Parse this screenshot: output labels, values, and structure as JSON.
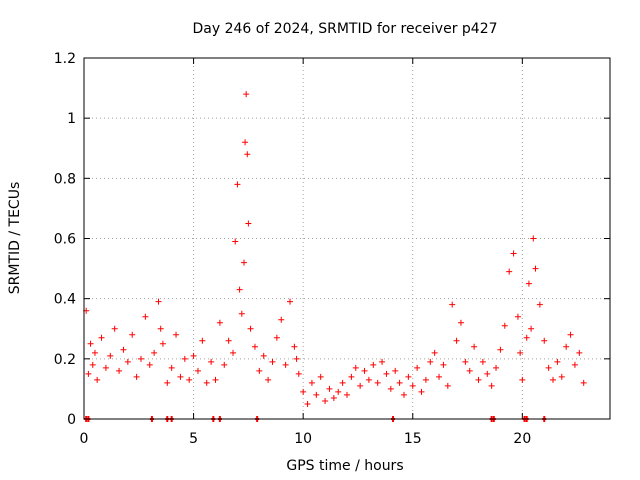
{
  "colors": {
    "series": "#ff0000",
    "background": "#ffffff",
    "grid": "#a0a0a0"
  },
  "chart_data": {
    "type": "scatter",
    "title": "Day 246 of 2024, SRMTID for receiver p427",
    "xlabel": "GPS time / hours",
    "ylabel": "SRMTID / TECUs",
    "xlim": [
      0,
      24
    ],
    "ylim": [
      0,
      1.2
    ],
    "xticks": [
      0,
      5,
      10,
      15,
      20
    ],
    "xtick_labels": [
      "0",
      "5",
      "10",
      "15",
      "20"
    ],
    "yticks": [
      0,
      0.2,
      0.4,
      0.6,
      0.8,
      1.0,
      1.2
    ],
    "ytick_labels": [
      "0",
      "0.2",
      "0.4",
      "0.6",
      "0.8",
      "1",
      "1.2"
    ],
    "grid": true,
    "marker": "+",
    "series": [
      {
        "name": "SRMTID",
        "x": [
          0.1,
          0.2,
          0.3,
          0.4,
          0.5,
          0.6,
          0.8,
          1.0,
          1.2,
          1.4,
          1.6,
          1.8,
          2.0,
          2.2,
          2.4,
          2.6,
          2.8,
          3.0,
          3.2,
          3.4,
          3.5,
          3.6,
          3.8,
          4.0,
          4.2,
          4.4,
          4.6,
          4.8,
          5.0,
          5.2,
          5.4,
          5.6,
          5.8,
          6.0,
          6.2,
          6.4,
          6.6,
          6.8,
          6.9,
          7.0,
          7.1,
          7.2,
          7.3,
          7.35,
          7.4,
          7.45,
          7.5,
          7.6,
          7.8,
          8.0,
          8.2,
          8.4,
          8.6,
          8.8,
          9.0,
          9.2,
          9.4,
          9.6,
          9.7,
          9.8,
          10.0,
          10.2,
          10.4,
          10.6,
          10.8,
          11.0,
          11.2,
          11.4,
          11.6,
          11.8,
          12.0,
          12.2,
          12.4,
          12.6,
          12.8,
          13.0,
          13.2,
          13.4,
          13.6,
          13.8,
          14.0,
          14.2,
          14.4,
          14.6,
          14.8,
          15.0,
          15.2,
          15.4,
          15.6,
          15.8,
          16.0,
          16.2,
          16.4,
          16.6,
          16.8,
          17.0,
          17.2,
          17.4,
          17.6,
          17.8,
          18.0,
          18.2,
          18.4,
          18.6,
          18.8,
          19.0,
          19.2,
          19.4,
          19.6,
          19.8,
          19.9,
          20.0,
          20.2,
          20.3,
          20.4,
          20.5,
          20.6,
          20.8,
          21.0,
          21.2,
          21.4,
          21.6,
          21.8,
          22.0,
          22.2,
          22.4,
          22.6,
          22.8
        ],
        "y": [
          0.36,
          0.15,
          0.25,
          0.18,
          0.22,
          0.13,
          0.27,
          0.17,
          0.21,
          0.3,
          0.16,
          0.23,
          0.19,
          0.28,
          0.14,
          0.2,
          0.34,
          0.18,
          0.22,
          0.39,
          0.3,
          0.25,
          0.12,
          0.17,
          0.28,
          0.14,
          0.2,
          0.13,
          0.21,
          0.16,
          0.26,
          0.12,
          0.19,
          0.13,
          0.32,
          0.18,
          0.26,
          0.22,
          0.59,
          0.78,
          0.43,
          0.35,
          0.52,
          0.92,
          1.08,
          0.88,
          0.65,
          0.3,
          0.24,
          0.16,
          0.21,
          0.13,
          0.19,
          0.27,
          0.33,
          0.18,
          0.39,
          0.24,
          0.2,
          0.15,
          0.09,
          0.05,
          0.12,
          0.08,
          0.14,
          0.06,
          0.1,
          0.07,
          0.09,
          0.12,
          0.08,
          0.14,
          0.17,
          0.11,
          0.16,
          0.13,
          0.18,
          0.12,
          0.19,
          0.15,
          0.1,
          0.16,
          0.12,
          0.08,
          0.14,
          0.11,
          0.17,
          0.09,
          0.13,
          0.19,
          0.22,
          0.14,
          0.18,
          0.11,
          0.38,
          0.26,
          0.32,
          0.19,
          0.16,
          0.24,
          0.13,
          0.19,
          0.15,
          0.11,
          0.17,
          0.23,
          0.31,
          0.49,
          0.55,
          0.34,
          0.22,
          0.13,
          0.27,
          0.45,
          0.3,
          0.6,
          0.5,
          0.38,
          0.26,
          0.17,
          0.13,
          0.19,
          0.14,
          0.24,
          0.28,
          0.18,
          0.22,
          0.12
        ]
      }
    ],
    "baseline_markers_x": [
      0.1,
      0.2,
      3.1,
      3.8,
      4.0,
      5.9,
      6.2,
      7.9,
      14.1,
      18.6,
      18.7,
      20.1,
      20.2,
      21.0
    ]
  }
}
